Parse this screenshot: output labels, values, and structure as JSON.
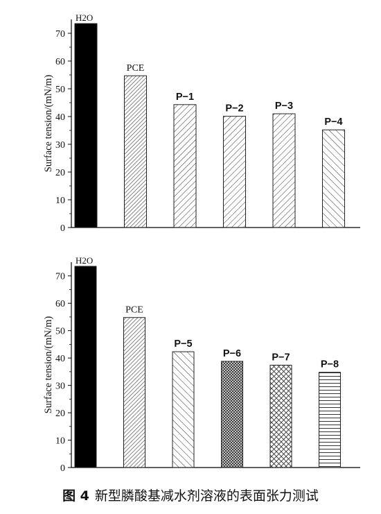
{
  "caption": {
    "figure_label": "图 4",
    "text": "新型膦酸基减水剂溶液的表面张力测试"
  },
  "chart_data": [
    {
      "type": "bar",
      "categories": [
        "H2O",
        "PCE",
        "P−1",
        "P−2",
        "P−3",
        "P−4"
      ],
      "values": [
        73.5,
        54.7,
        44.3,
        40.1,
        41.0,
        35.2
      ],
      "ylabel": "Surface tension/(mN/m)",
      "ylim": [
        0,
        75
      ],
      "yticks": [
        0,
        10,
        20,
        30,
        40,
        50,
        60,
        70
      ],
      "patterns": [
        "solid",
        "diag-dense",
        "diag-right",
        "diag-right",
        "diag-right",
        "diag-left"
      ]
    },
    {
      "type": "bar",
      "categories": [
        "H2O",
        "PCE",
        "P−5",
        "P−6",
        "P−7",
        "P−8"
      ],
      "values": [
        73.5,
        54.8,
        42.3,
        38.8,
        37.4,
        34.8
      ],
      "ylabel": "Surface tension/(mN/m)",
      "ylim": [
        0,
        75
      ],
      "yticks": [
        0,
        10,
        20,
        30,
        40,
        50,
        60,
        70
      ],
      "patterns": [
        "solid",
        "diag-dense",
        "diag-left",
        "dense-grid",
        "crosshatch",
        "horizontal"
      ]
    }
  ]
}
